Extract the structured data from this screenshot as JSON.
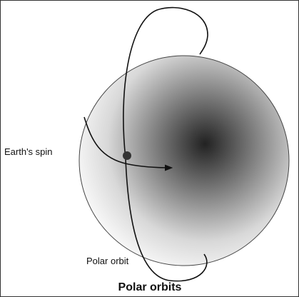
{
  "labels": {
    "spin": "Earth's spin",
    "orbit": "Polar orbit"
  },
  "caption": "Polar orbits"
}
